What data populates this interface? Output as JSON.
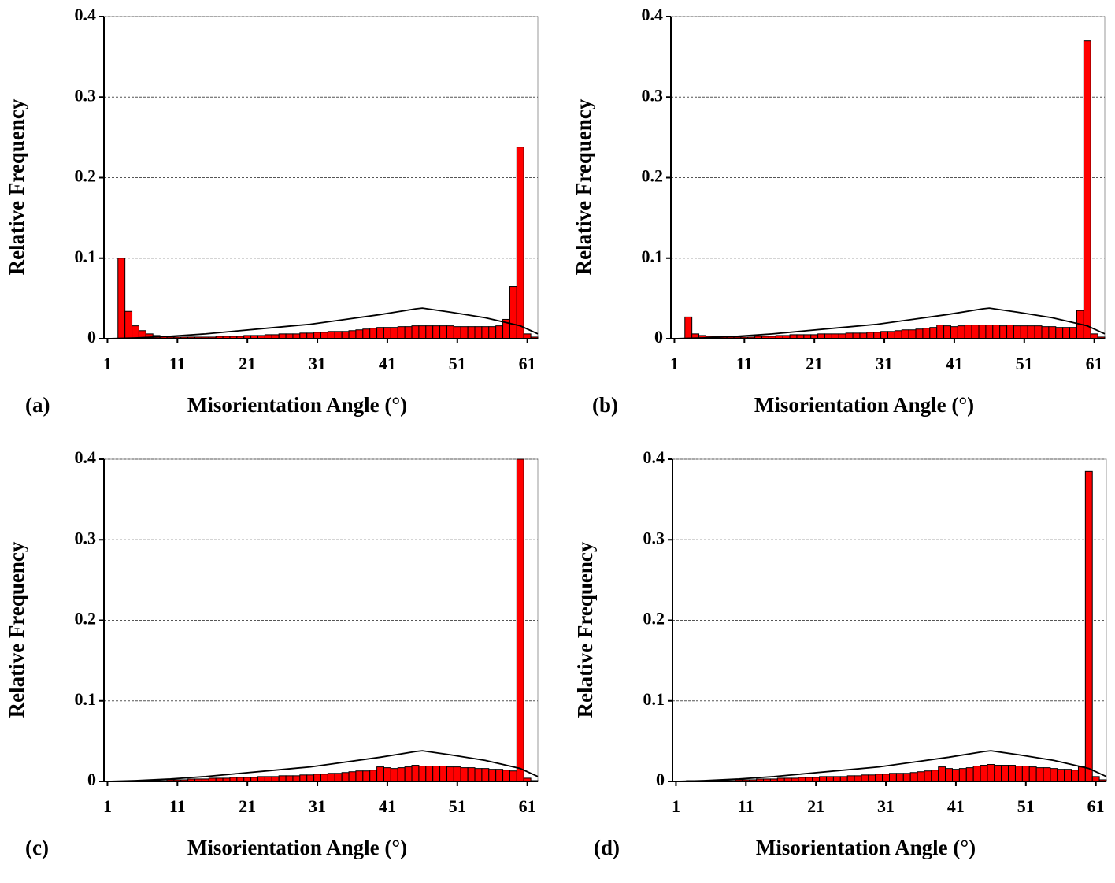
{
  "chart_data": [
    {
      "type": "histogram",
      "label": "(a)",
      "xlabel": "Misorientation Angle (°)",
      "ylabel": "Relative Frequency",
      "bins": [
        2.5,
        3.5,
        4.5,
        5.5,
        6.5,
        7.5,
        8.5,
        9.5,
        10.5,
        11.5,
        12.5,
        13.5,
        14.5,
        15.5,
        16.5,
        17.5,
        18.5,
        19.5,
        20.5,
        21.5,
        22.5,
        23.5,
        24.5,
        25.5,
        26.5,
        27.5,
        28.5,
        29.5,
        30.5,
        31.5,
        32.5,
        33.5,
        34.5,
        35.5,
        36.5,
        37.5,
        38.5,
        39.5,
        40.5,
        41.5,
        42.5,
        43.5,
        44.5,
        45.5,
        46.5,
        47.5,
        48.5,
        49.5,
        50.5,
        51.5,
        52.5,
        53.5,
        54.5,
        55.5,
        56.5,
        57.5,
        58.5,
        59.5,
        60.5,
        61.5,
        62.5
      ],
      "values": [
        0.1,
        0.034,
        0.016,
        0.01,
        0.006,
        0.004,
        0.003,
        0.002,
        0.002,
        0.002,
        0.002,
        0.002,
        0.002,
        0.002,
        0.003,
        0.003,
        0.003,
        0.003,
        0.004,
        0.004,
        0.004,
        0.005,
        0.005,
        0.006,
        0.006,
        0.006,
        0.007,
        0.007,
        0.008,
        0.008,
        0.009,
        0.009,
        0.009,
        0.01,
        0.011,
        0.012,
        0.013,
        0.014,
        0.014,
        0.014,
        0.015,
        0.015,
        0.016,
        0.016,
        0.016,
        0.016,
        0.016,
        0.016,
        0.015,
        0.015,
        0.015,
        0.015,
        0.015,
        0.015,
        0.016,
        0.024,
        0.065,
        0.238,
        0.006,
        0.002
      ],
      "color": "#ff0000",
      "curve": {
        "x": [
          1,
          5,
          10,
          15,
          20,
          25,
          30,
          35,
          40,
          45,
          46,
          50,
          55,
          60,
          62.5
        ],
        "values": [
          0,
          0.001,
          0.003,
          0.006,
          0.01,
          0.014,
          0.018,
          0.024,
          0.03,
          0.037,
          0.038,
          0.033,
          0.026,
          0.016,
          0.006
        ],
        "color": "#000000"
      },
      "xlim": [
        0.5,
        62.5
      ],
      "xticks": [
        1,
        11,
        21,
        31,
        41,
        51,
        61
      ],
      "ylim": [
        0,
        0.4
      ],
      "yticks": [
        0,
        0.1,
        0.2,
        0.3,
        0.4
      ],
      "grid": true
    },
    {
      "type": "histogram",
      "label": "(b)",
      "xlabel": "Misorientation Angle (°)",
      "ylabel": "Relative Frequency",
      "bins": [
        2.5,
        3.5,
        4.5,
        5.5,
        6.5,
        7.5,
        8.5,
        9.5,
        10.5,
        11.5,
        12.5,
        13.5,
        14.5,
        15.5,
        16.5,
        17.5,
        18.5,
        19.5,
        20.5,
        21.5,
        22.5,
        23.5,
        24.5,
        25.5,
        26.5,
        27.5,
        28.5,
        29.5,
        30.5,
        31.5,
        32.5,
        33.5,
        34.5,
        35.5,
        36.5,
        37.5,
        38.5,
        39.5,
        40.5,
        41.5,
        42.5,
        43.5,
        44.5,
        45.5,
        46.5,
        47.5,
        48.5,
        49.5,
        50.5,
        51.5,
        52.5,
        53.5,
        54.5,
        55.5,
        56.5,
        57.5,
        58.5,
        59.5,
        60.5,
        61.5,
        62.5
      ],
      "values": [
        0.027,
        0.006,
        0.004,
        0.003,
        0.003,
        0.002,
        0.002,
        0.002,
        0.002,
        0.002,
        0.003,
        0.003,
        0.003,
        0.004,
        0.004,
        0.005,
        0.005,
        0.005,
        0.005,
        0.006,
        0.006,
        0.006,
        0.006,
        0.007,
        0.007,
        0.007,
        0.008,
        0.008,
        0.009,
        0.009,
        0.01,
        0.011,
        0.011,
        0.012,
        0.013,
        0.014,
        0.017,
        0.016,
        0.015,
        0.016,
        0.017,
        0.017,
        0.017,
        0.017,
        0.017,
        0.016,
        0.017,
        0.016,
        0.016,
        0.016,
        0.016,
        0.015,
        0.015,
        0.014,
        0.014,
        0.014,
        0.035,
        0.37,
        0.006,
        0.002
      ],
      "color": "#ff0000",
      "curve": {
        "x": [
          1,
          5,
          10,
          15,
          20,
          25,
          30,
          35,
          40,
          45,
          46,
          50,
          55,
          60,
          62.5
        ],
        "values": [
          0,
          0.001,
          0.003,
          0.006,
          0.01,
          0.014,
          0.018,
          0.024,
          0.03,
          0.037,
          0.038,
          0.033,
          0.026,
          0.016,
          0.006
        ],
        "color": "#000000"
      },
      "xlim": [
        0.5,
        62.5
      ],
      "xticks": [
        1,
        11,
        21,
        31,
        41,
        51,
        61
      ],
      "ylim": [
        0,
        0.4
      ],
      "yticks": [
        0,
        0.1,
        0.2,
        0.3,
        0.4
      ],
      "grid": true
    },
    {
      "type": "histogram",
      "label": "(c)",
      "xlabel": "Misorientation Angle (°)",
      "ylabel": "Relative Frequency",
      "bins": [
        2.5,
        3.5,
        4.5,
        5.5,
        6.5,
        7.5,
        8.5,
        9.5,
        10.5,
        11.5,
        12.5,
        13.5,
        14.5,
        15.5,
        16.5,
        17.5,
        18.5,
        19.5,
        20.5,
        21.5,
        22.5,
        23.5,
        24.5,
        25.5,
        26.5,
        27.5,
        28.5,
        29.5,
        30.5,
        31.5,
        32.5,
        33.5,
        34.5,
        35.5,
        36.5,
        37.5,
        38.5,
        39.5,
        40.5,
        41.5,
        42.5,
        43.5,
        44.5,
        45.5,
        46.5,
        47.5,
        48.5,
        49.5,
        50.5,
        51.5,
        52.5,
        53.5,
        54.5,
        55.5,
        56.5,
        57.5,
        58.5,
        59.5,
        60.5,
        61.5,
        62.5
      ],
      "values": [
        0,
        0,
        0,
        0,
        0.001,
        0.001,
        0.001,
        0.002,
        0.002,
        0.002,
        0.003,
        0.003,
        0.003,
        0.004,
        0.004,
        0.004,
        0.005,
        0.005,
        0.005,
        0.005,
        0.006,
        0.006,
        0.006,
        0.007,
        0.007,
        0.007,
        0.008,
        0.008,
        0.009,
        0.009,
        0.01,
        0.01,
        0.011,
        0.012,
        0.013,
        0.013,
        0.014,
        0.018,
        0.017,
        0.016,
        0.017,
        0.018,
        0.02,
        0.019,
        0.019,
        0.019,
        0.019,
        0.018,
        0.018,
        0.017,
        0.017,
        0.016,
        0.016,
        0.015,
        0.015,
        0.014,
        0.013,
        0.4,
        0.004,
        0.001
      ],
      "color": "#ff0000",
      "curve": {
        "x": [
          1,
          5,
          10,
          15,
          20,
          25,
          30,
          35,
          40,
          45,
          46,
          50,
          55,
          60,
          62.5
        ],
        "values": [
          0,
          0.001,
          0.003,
          0.006,
          0.01,
          0.014,
          0.018,
          0.024,
          0.03,
          0.037,
          0.038,
          0.033,
          0.026,
          0.016,
          0.006
        ],
        "color": "#000000"
      },
      "xlim": [
        0.5,
        62.5
      ],
      "xticks": [
        1,
        11,
        21,
        31,
        41,
        51,
        61
      ],
      "ylim": [
        0,
        0.4
      ],
      "yticks": [
        0,
        0.1,
        0.2,
        0.3,
        0.4
      ],
      "grid": true
    },
    {
      "type": "histogram",
      "label": "(d)",
      "xlabel": "Misorientation Angle (°)",
      "ylabel": "Relative Frequency",
      "bins": [
        2.5,
        3.5,
        4.5,
        5.5,
        6.5,
        7.5,
        8.5,
        9.5,
        10.5,
        11.5,
        12.5,
        13.5,
        14.5,
        15.5,
        16.5,
        17.5,
        18.5,
        19.5,
        20.5,
        21.5,
        22.5,
        23.5,
        24.5,
        25.5,
        26.5,
        27.5,
        28.5,
        29.5,
        30.5,
        31.5,
        32.5,
        33.5,
        34.5,
        35.5,
        36.5,
        37.5,
        38.5,
        39.5,
        40.5,
        41.5,
        42.5,
        43.5,
        44.5,
        45.5,
        46.5,
        47.5,
        48.5,
        49.5,
        50.5,
        51.5,
        52.5,
        53.5,
        54.5,
        55.5,
        56.5,
        57.5,
        58.5,
        59.5,
        60.5,
        61.5,
        62.5
      ],
      "values": [
        0.001,
        0,
        0,
        0.001,
        0.001,
        0.001,
        0.001,
        0.002,
        0.002,
        0.002,
        0.003,
        0.003,
        0.003,
        0.004,
        0.004,
        0.004,
        0.005,
        0.005,
        0.005,
        0.006,
        0.006,
        0.006,
        0.006,
        0.007,
        0.007,
        0.008,
        0.008,
        0.009,
        0.009,
        0.01,
        0.01,
        0.01,
        0.011,
        0.012,
        0.013,
        0.014,
        0.018,
        0.016,
        0.015,
        0.016,
        0.017,
        0.019,
        0.02,
        0.021,
        0.02,
        0.02,
        0.02,
        0.019,
        0.019,
        0.018,
        0.017,
        0.017,
        0.016,
        0.015,
        0.015,
        0.014,
        0.018,
        0.385,
        0.006,
        0.002
      ],
      "color": "#ff0000",
      "curve": {
        "x": [
          1,
          5,
          10,
          15,
          20,
          25,
          30,
          35,
          40,
          45,
          46,
          50,
          55,
          60,
          62.5
        ],
        "values": [
          0,
          0.001,
          0.003,
          0.006,
          0.01,
          0.014,
          0.018,
          0.024,
          0.03,
          0.037,
          0.038,
          0.033,
          0.026,
          0.016,
          0.006
        ],
        "color": "#000000"
      },
      "xlim": [
        0.5,
        62.5
      ],
      "xticks": [
        1,
        11,
        21,
        31,
        41,
        51,
        61
      ],
      "ylim": [
        0,
        0.4
      ],
      "yticks": [
        0,
        0.1,
        0.2,
        0.3,
        0.4
      ],
      "grid": true
    }
  ]
}
